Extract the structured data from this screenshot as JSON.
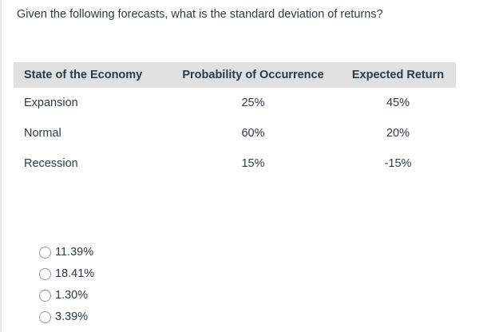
{
  "question": {
    "text": "Given the following forecasts, what is the standard deviation of returns?"
  },
  "table": {
    "headers": [
      "State of the Economy",
      "Probability of Occurrence",
      "Expected Return"
    ],
    "rows": [
      {
        "state": "Expansion",
        "probability": "25%",
        "expected_return": "45%"
      },
      {
        "state": "Normal",
        "probability": "60%",
        "expected_return": "20%"
      },
      {
        "state": "Recession",
        "probability": "15%",
        "expected_return": "-15%"
      }
    ]
  },
  "options": [
    {
      "label": "11.39%",
      "selected": false
    },
    {
      "label": "18.41%",
      "selected": false
    },
    {
      "label": "1.30%",
      "selected": false
    },
    {
      "label": "3.39%",
      "selected": false
    }
  ],
  "colors": {
    "text": "#2d3b45",
    "table_header_bg": "#e0e0e0",
    "page_border": "#e7e7e7",
    "radio_border": "#9a9a9a"
  }
}
